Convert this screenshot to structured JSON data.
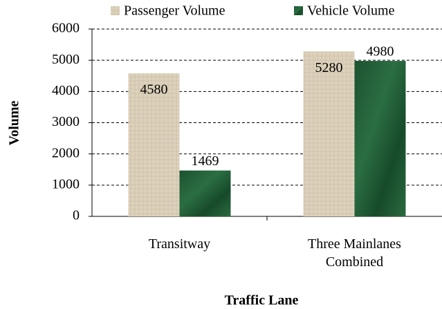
{
  "chart_data": {
    "type": "bar",
    "categories": [
      "Transitway",
      "Three Mainlanes Combined"
    ],
    "series": [
      {
        "name": "Passenger Volume",
        "color": "#ddd2bd",
        "values": [
          4580,
          5280
        ]
      },
      {
        "name": "Vehicle Volume",
        "color": "#1f5a34",
        "values": [
          1469,
          4980
        ]
      }
    ],
    "ylim": [
      0,
      6000
    ],
    "yticks": [
      0,
      1000,
      2000,
      3000,
      4000,
      5000,
      6000
    ],
    "grid": true,
    "legend": "top",
    "ylabel": "Volume",
    "xlabel": "Traffic Lane"
  }
}
